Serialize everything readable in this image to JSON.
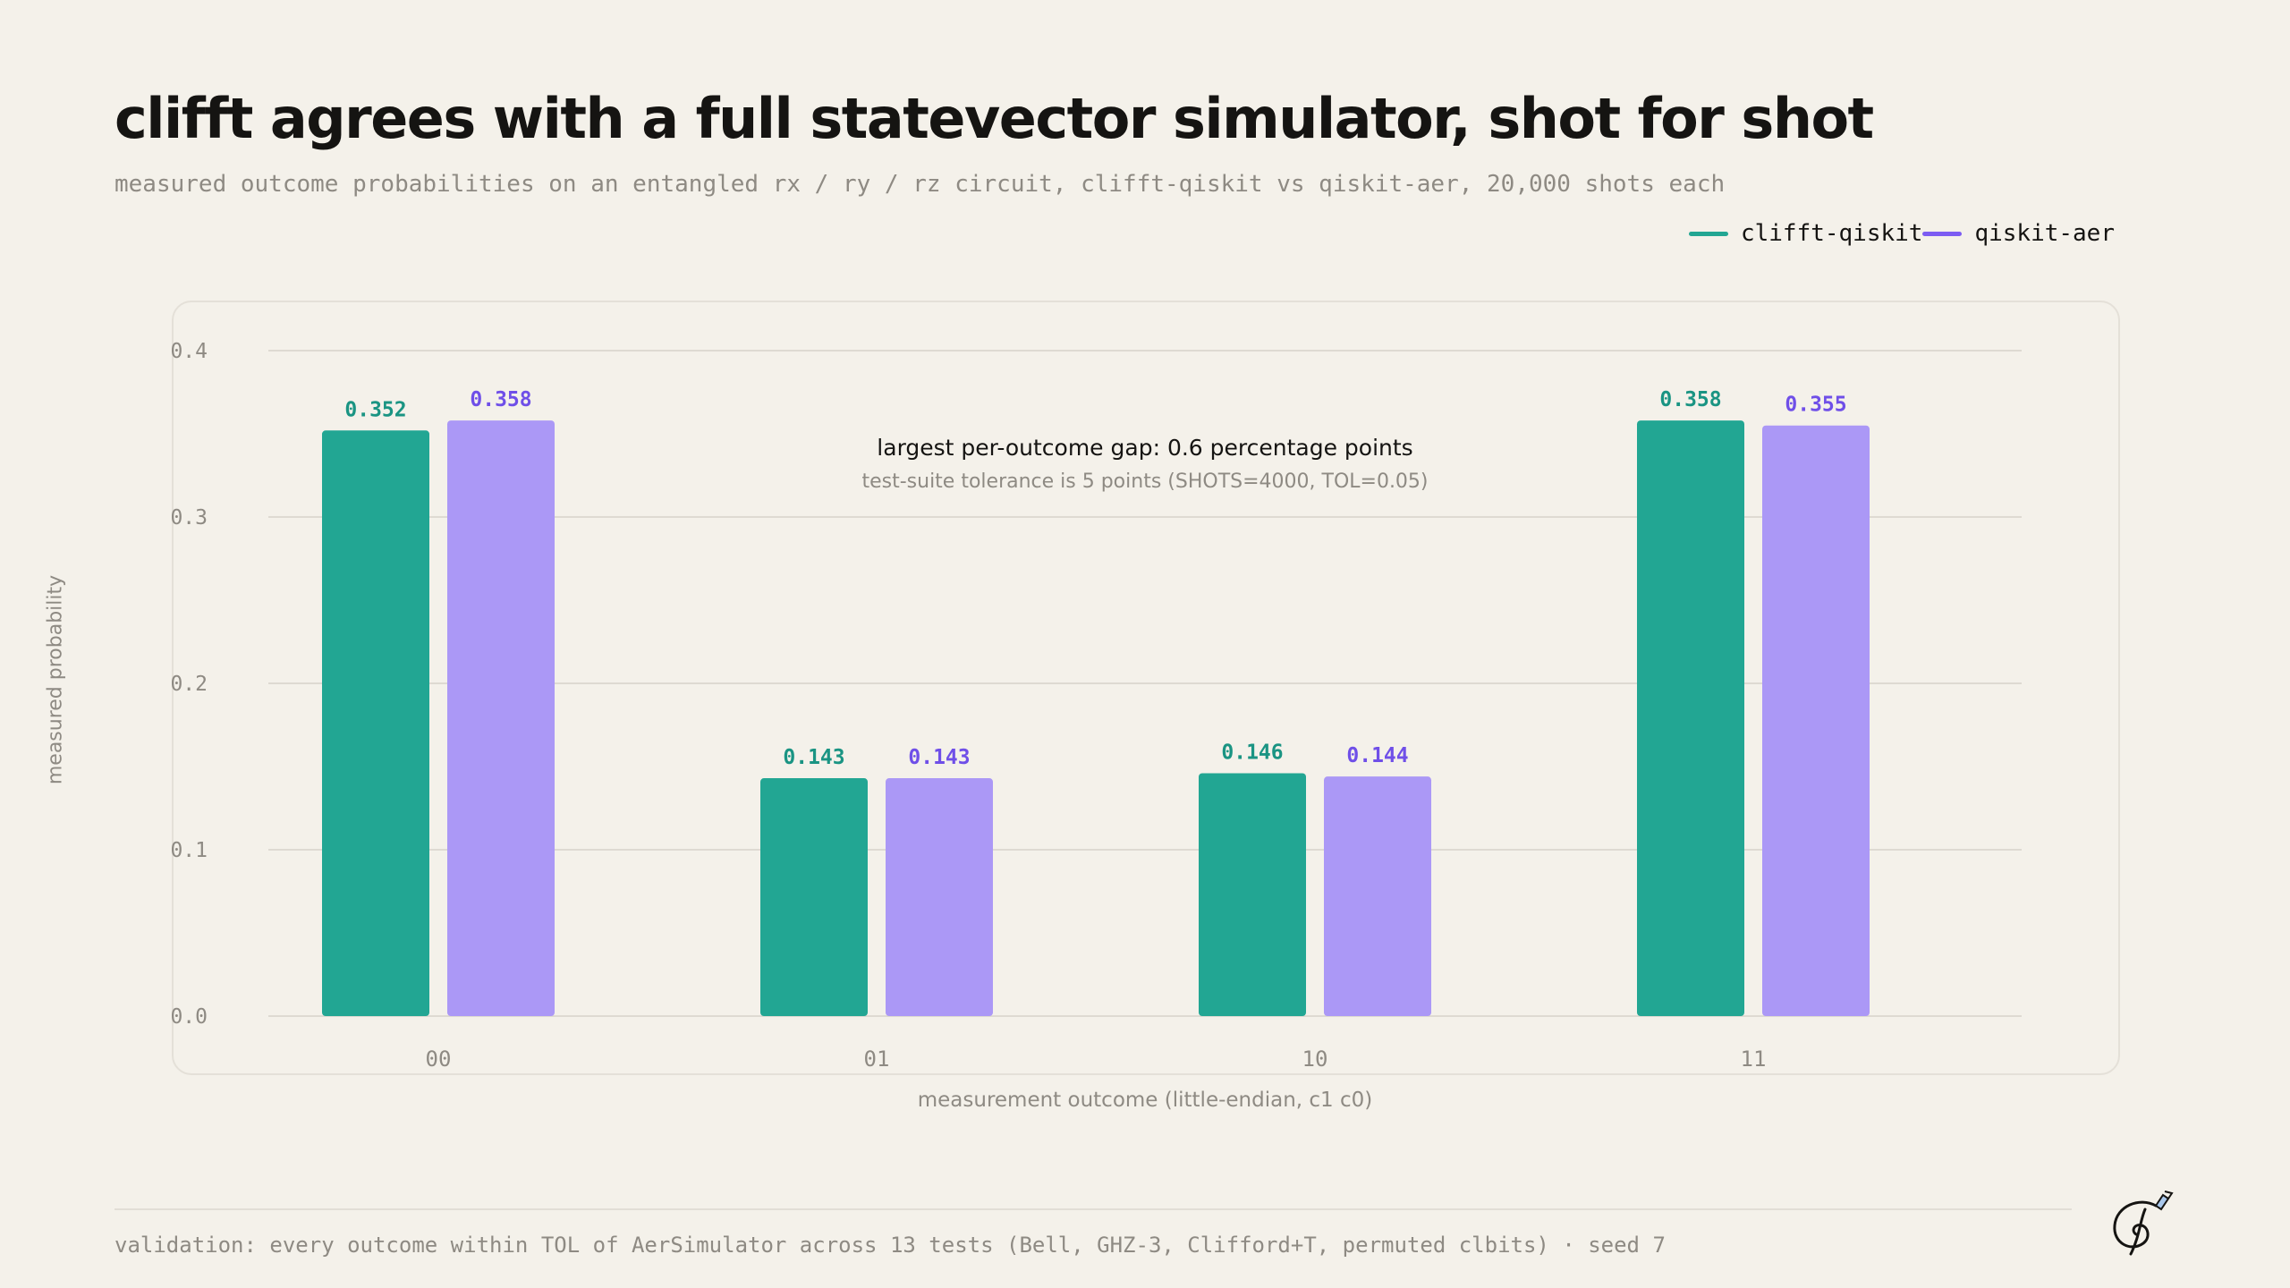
{
  "title": "clifft agrees with a full statevector simulator, shot for shot",
  "subtitle": "measured outcome probabilities on an entangled rx / ry / rz circuit, clifft-qiskit vs qiskit-aer, 20,000 shots each",
  "legend": [
    {
      "label": "clifft-qiskit",
      "color": "#22a693"
    },
    {
      "label": "qiskit-aer",
      "color": "#7c5cf2"
    }
  ],
  "annotation": {
    "main": "largest per-outcome gap: 0.6 percentage points",
    "sub": "test-suite tolerance is 5 points (SHOTS=4000, TOL=0.05)"
  },
  "footer": "validation: every outcome within TOL of AerSimulator across 13 tests (Bell, GHZ-3, Clifford+T, permuted clbits) · seed 7",
  "chart_data": {
    "type": "bar",
    "title": "clifft agrees with a full statevector simulator, shot for shot",
    "xlabel": "measurement outcome (little-endian, c1 c0)",
    "ylabel": "measured probability",
    "categories": [
      "00",
      "01",
      "10",
      "11"
    ],
    "series": [
      {
        "name": "clifft-qiskit",
        "values": [
          0.352,
          0.143,
          0.146,
          0.358
        ],
        "labels": [
          "0.352",
          "0.143",
          "0.146",
          "0.358"
        ],
        "color": "#22a693",
        "label_color": "#1a9483"
      },
      {
        "name": "qiskit-aer",
        "values": [
          0.358,
          0.143,
          0.144,
          0.355
        ],
        "labels": [
          "0.358",
          "0.143",
          "0.144",
          "0.355"
        ],
        "color": "#ab98f6",
        "label_color": "#6f4fe8"
      }
    ],
    "ylim": [
      0,
      0.4
    ],
    "yticks": [
      "0.0",
      "0.1",
      "0.2",
      "0.3",
      "0.4"
    ],
    "grid": true,
    "legend_position": "top-right"
  }
}
